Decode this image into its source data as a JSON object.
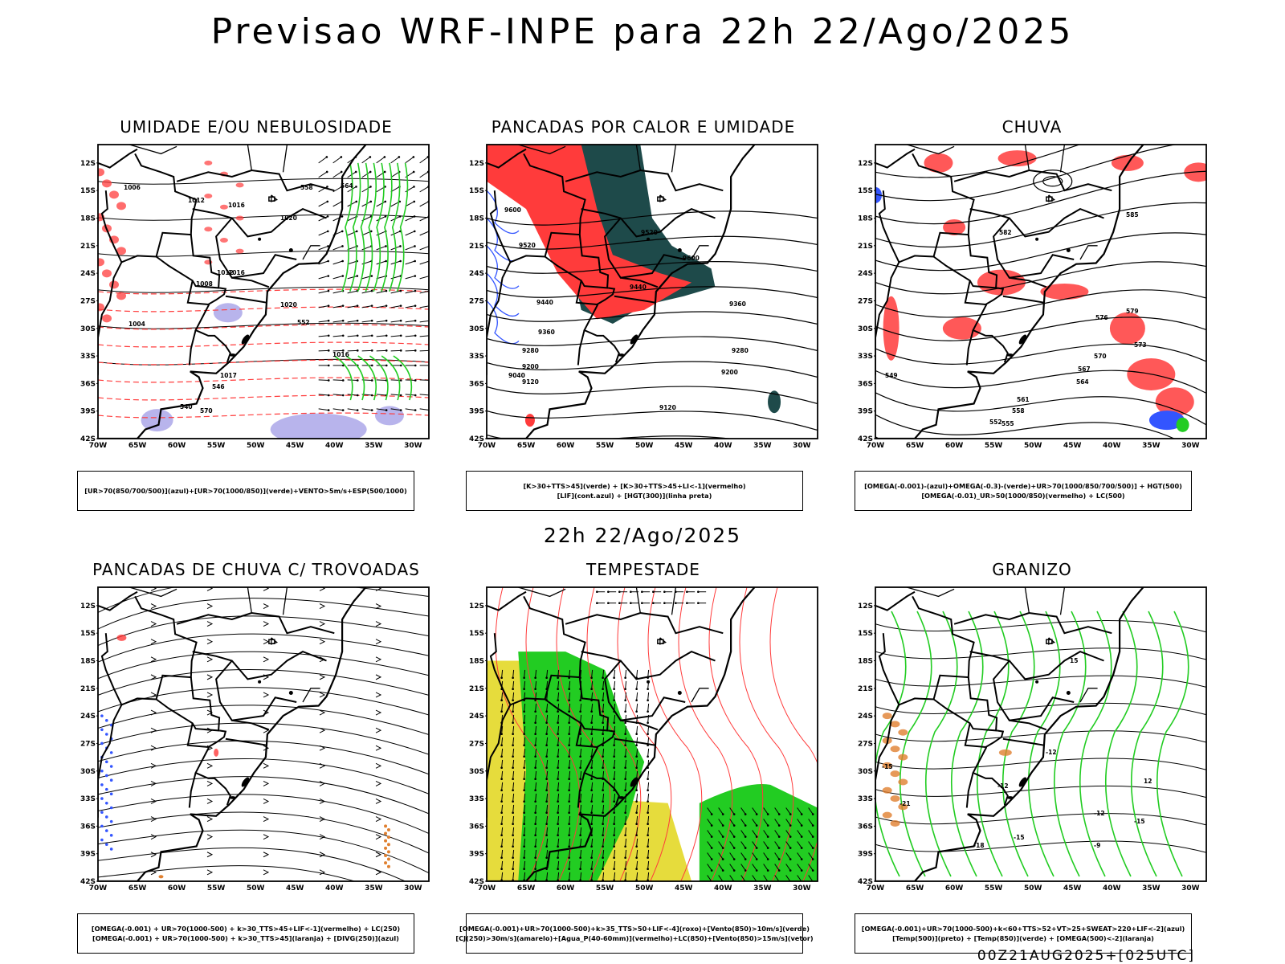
{
  "header": {
    "title": "Previsao WRF-INPE  para 22h 22/Ago/2025",
    "subtitle": "22h 22/Ago/2025",
    "footer": "00Z21AUG2025+[025UTC]"
  },
  "axes": {
    "lat_labels": [
      "12S",
      "15S",
      "18S",
      "21S",
      "24S",
      "27S",
      "30S",
      "33S",
      "36S",
      "39S",
      "42S"
    ],
    "lon_labels": [
      "70W",
      "65W",
      "60W",
      "55W",
      "50W",
      "45W",
      "40W",
      "35W",
      "30W"
    ]
  },
  "colors": {
    "red": "#ff3b3b",
    "green": "#22cc22",
    "blue": "#3355ff",
    "lavender": "#b8b4ec",
    "darkteal": "#1e4a4a",
    "yellow": "#e6dc3c",
    "orange": "#e08030"
  },
  "panels": [
    {
      "title": "UMIDADE E/OU NEBULOSIDADE",
      "legend": [
        "[UR>70(850/700/500)](azul)+[UR>70(1000/850)](verde)+VENTO>5m/s+ESP(500/1000)"
      ],
      "contour_labels": [
        "1006",
        "1012",
        "1016",
        "1020",
        "1008",
        "1012",
        "1016",
        "1004",
        "1020",
        "1016",
        "1017",
        "570",
        "564",
        "558",
        "552",
        "546",
        "540"
      ]
    },
    {
      "title": "PANCADAS POR CALOR E UMIDADE",
      "legend": [
        "[K>30+TTS>45](verde) + [K>30+TTS>45+LI<-1](vermelho)",
        "[LIF](cont.azul) + [HGT(300)](linha preta)"
      ],
      "contour_labels": [
        "9600",
        "9520",
        "9440",
        "9360",
        "9280",
        "9200",
        "9120",
        "9040",
        "9600",
        "9520",
        "9440",
        "9360",
        "9280",
        "9200",
        "9120"
      ]
    },
    {
      "title": "CHUVA",
      "legend": [
        "[OMEGA(-0.001)-(azul)+OMEGA(-0.3)-(verde)+UR>70(1000/850/700/500)] + HGT(500)",
        "[OMEGA(-0.01)_UR>50(1000/850)(vermelho) + LC(500)"
      ],
      "contour_labels": [
        "585",
        "582",
        "579",
        "576",
        "573",
        "570",
        "567",
        "564",
        "561",
        "558",
        "555",
        "552",
        "549"
      ]
    },
    {
      "title": "PANCADAS DE CHUVA C/ TROVOADAS",
      "legend": [
        "[OMEGA(-0.001) + UR>70(1000-500) + k>30_TTS>45+LIF<-1](vermelho) + LC(250)",
        "[OMEGA(-0.001) + UR>70(1000-500) + k>30_TTS>45](laranja) + [DIVG(250)](azul)"
      ],
      "contour_labels": []
    },
    {
      "title": "TEMPESTADE",
      "legend": [
        "[OMEGA(-0.001)+UR>70(1000-500)+k>35_TTS>50+LIF<-4](roxo)+[Vento(850)>10m/s](verde)",
        "[CJ(250)>30m/s](amarelo)+[Agua_P(40-60mm)](vermelho)+LC(850)+[Vento(850)>15m/s](vetor)"
      ],
      "contour_labels": []
    },
    {
      "title": "GRANIZO",
      "legend": [
        "[OMEGA(-0.001)+UR>70(1000-500)+k<60+TTS>52+VT>25+SWEAT>220+LIF<-2](azul)",
        "[Temp(500)](preto) + [Temp(850)](verde) + [OMEGA(500)<-2](laranja)"
      ],
      "contour_labels": [
        "-15",
        "-12",
        "-18",
        "-15",
        "-12",
        "-9",
        "12",
        "15",
        "-21",
        "-15",
        "-12"
      ]
    }
  ]
}
